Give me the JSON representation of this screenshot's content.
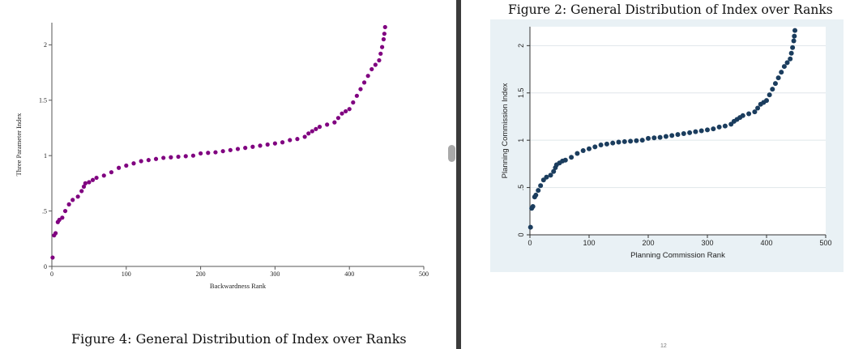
{
  "left_figure": {
    "caption": "Figure 4: General Distribution of Index over Ranks"
  },
  "right_figure": {
    "title": "Figure 2: General Distribution of Index over Ranks"
  },
  "page_mark": "12",
  "colors": {
    "left_series": "#800080",
    "right_series": "#1b3d5e",
    "right_plot_bg": "#e9f1f5",
    "divider": "#3b3b3b"
  },
  "chart_data": [
    {
      "type": "scatter",
      "title": "",
      "xlabel": "Backwardness Rank",
      "ylabel": "Three Parameter Index",
      "xlim": [
        0,
        500
      ],
      "ylim": [
        0,
        2.2
      ],
      "xticks": [
        0,
        100,
        200,
        300,
        400,
        500
      ],
      "yticks": [
        0,
        0.5,
        1,
        1.5,
        2
      ],
      "ytick_labels": [
        "0",
        ".5",
        "1",
        "1.5",
        "2"
      ],
      "grid": false,
      "series": [
        {
          "x": [
            1,
            3,
            5,
            8,
            10,
            14,
            18,
            23,
            28,
            35,
            40,
            43,
            45,
            50,
            55,
            60,
            70,
            80,
            90,
            100,
            110,
            120,
            130,
            140,
            150,
            160,
            170,
            180,
            190,
            200,
            210,
            220,
            230,
            240,
            250,
            260,
            270,
            280,
            290,
            300,
            310,
            320,
            330,
            340,
            345,
            350,
            355,
            360,
            370,
            380,
            385,
            390,
            395,
            400,
            405,
            410,
            415,
            420,
            425,
            430,
            435,
            440,
            442,
            444,
            446,
            447,
            448
          ],
          "y": [
            0.08,
            0.28,
            0.3,
            0.4,
            0.42,
            0.44,
            0.5,
            0.56,
            0.6,
            0.63,
            0.68,
            0.72,
            0.75,
            0.76,
            0.78,
            0.8,
            0.82,
            0.85,
            0.89,
            0.91,
            0.93,
            0.95,
            0.96,
            0.97,
            0.98,
            0.985,
            0.99,
            0.995,
            1.0,
            1.02,
            1.025,
            1.03,
            1.04,
            1.05,
            1.06,
            1.07,
            1.08,
            1.09,
            1.1,
            1.11,
            1.12,
            1.14,
            1.15,
            1.17,
            1.2,
            1.22,
            1.24,
            1.26,
            1.28,
            1.3,
            1.34,
            1.38,
            1.4,
            1.42,
            1.48,
            1.54,
            1.6,
            1.66,
            1.72,
            1.78,
            1.82,
            1.86,
            1.92,
            1.98,
            2.05,
            2.1,
            2.16
          ]
        }
      ]
    },
    {
      "type": "scatter",
      "title": "Figure 2: General Distribution of Index over Ranks",
      "xlabel": "Planning Commission Rank",
      "ylabel": "Planning Commission Index",
      "xlim": [
        0,
        500
      ],
      "ylim": [
        0,
        2.2
      ],
      "xticks": [
        0,
        100,
        200,
        300,
        400,
        500
      ],
      "yticks": [
        0,
        0.5,
        1,
        1.5,
        2
      ],
      "ytick_labels": [
        "0",
        ".5",
        "1",
        "1.5",
        "2"
      ],
      "grid": true,
      "series": [
        {
          "x": [
            1,
            3,
            5,
            8,
            10,
            14,
            18,
            23,
            28,
            35,
            40,
            43,
            45,
            50,
            55,
            60,
            70,
            80,
            90,
            100,
            110,
            120,
            130,
            140,
            150,
            160,
            170,
            180,
            190,
            200,
            210,
            220,
            230,
            240,
            250,
            260,
            270,
            280,
            290,
            300,
            310,
            320,
            330,
            340,
            345,
            350,
            355,
            360,
            370,
            380,
            385,
            390,
            395,
            400,
            405,
            410,
            415,
            420,
            425,
            430,
            435,
            440,
            442,
            444,
            446,
            447,
            448
          ],
          "y": [
            0.08,
            0.28,
            0.3,
            0.4,
            0.42,
            0.47,
            0.52,
            0.58,
            0.61,
            0.63,
            0.67,
            0.71,
            0.74,
            0.76,
            0.78,
            0.79,
            0.82,
            0.86,
            0.89,
            0.91,
            0.93,
            0.95,
            0.96,
            0.97,
            0.98,
            0.985,
            0.99,
            0.995,
            1.0,
            1.02,
            1.025,
            1.03,
            1.04,
            1.05,
            1.06,
            1.07,
            1.08,
            1.09,
            1.1,
            1.11,
            1.12,
            1.14,
            1.15,
            1.17,
            1.2,
            1.22,
            1.24,
            1.26,
            1.28,
            1.3,
            1.34,
            1.38,
            1.4,
            1.42,
            1.48,
            1.54,
            1.6,
            1.66,
            1.72,
            1.78,
            1.82,
            1.86,
            1.92,
            1.98,
            2.05,
            2.1,
            2.16
          ]
        }
      ]
    }
  ]
}
